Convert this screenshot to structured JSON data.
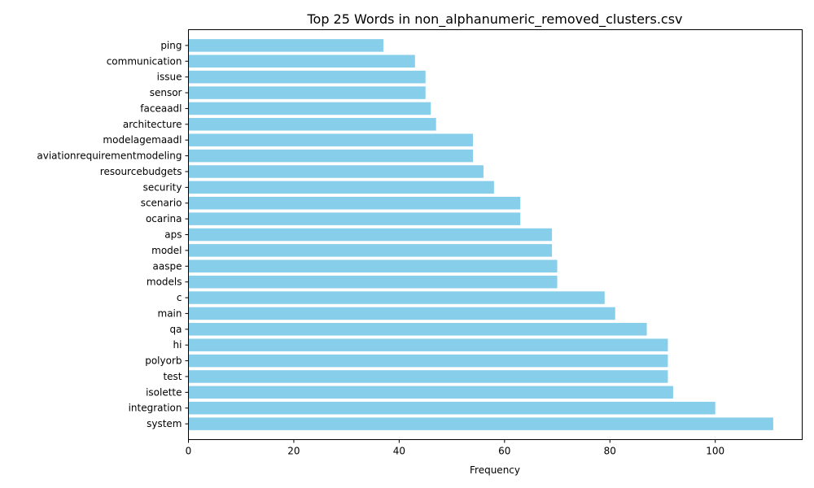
{
  "chart_data": {
    "type": "bar",
    "orientation": "horizontal",
    "title": "Top 25 Words in non_alphanumeric_removed_clusters.csv",
    "xlabel": "Frequency",
    "ylabel": "",
    "bar_color": "#87ceeb",
    "grid": false,
    "xlim": [
      0,
      116.5
    ],
    "xticks": [
      0,
      20,
      40,
      60,
      80,
      100
    ],
    "categories": [
      "system",
      "integration",
      "isolette",
      "test",
      "polyorb",
      "hi",
      "qa",
      "main",
      "c",
      "models",
      "aaspe",
      "model",
      "aps",
      "ocarina",
      "scenario",
      "security",
      "resourcebudgets",
      "aviationrequirementmodeling",
      "modelagemaadl",
      "architecture",
      "faceaadl",
      "sensor",
      "issue",
      "communication",
      "ping"
    ],
    "values": [
      111,
      100,
      92,
      91,
      91,
      91,
      87,
      81,
      79,
      70,
      70,
      69,
      69,
      63,
      63,
      58,
      56,
      54,
      54,
      47,
      46,
      45,
      45,
      43,
      37
    ]
  }
}
